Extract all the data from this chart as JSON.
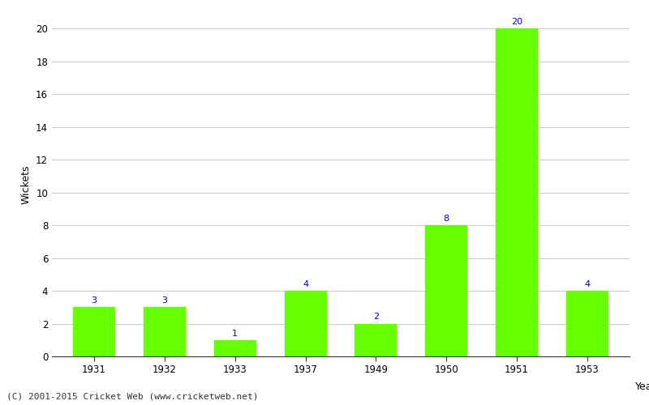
{
  "years": [
    "1931",
    "1932",
    "1933",
    "1937",
    "1949",
    "1950",
    "1951",
    "1953"
  ],
  "wickets": [
    3,
    3,
    1,
    4,
    2,
    8,
    20,
    4
  ],
  "bar_color": "#66ff00",
  "bar_edge_color": "#66ff00",
  "annotation_color": "#0000cc",
  "ylabel": "Wickets",
  "xlabel": "Year",
  "ylim": [
    0,
    21
  ],
  "yticks": [
    0,
    2,
    4,
    6,
    8,
    10,
    12,
    14,
    16,
    18,
    20
  ],
  "grid_color": "#cccccc",
  "background_color": "#ffffff",
  "footer_text": "(C) 2001-2015 Cricket Web (www.cricketweb.net)",
  "annotation_fontsize": 8,
  "axis_label_fontsize": 9,
  "tick_fontsize": 8.5,
  "footer_fontsize": 8,
  "bar_width": 0.6
}
